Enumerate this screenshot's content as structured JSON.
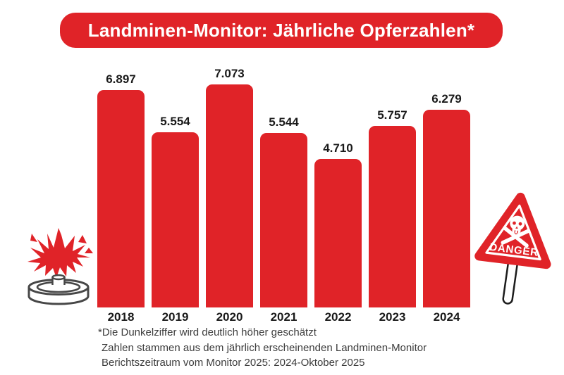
{
  "title": {
    "text": "Landminen-Monitor: Jährliche Opferzahlen*",
    "bg_color": "#e02328",
    "text_color": "#ffffff"
  },
  "chart_data": {
    "type": "bar",
    "title": "Landminen-Monitor: Jährliche Opferzahlen*",
    "categories": [
      "2018",
      "2019",
      "2020",
      "2021",
      "2022",
      "2023",
      "2024"
    ],
    "values": [
      6897,
      5554,
      7073,
      5544,
      4710,
      5757,
      6279
    ],
    "value_labels": [
      "6.897",
      "5.554",
      "7.073",
      "5.544",
      "4.710",
      "5.757",
      "6.279"
    ],
    "xlabel": "",
    "ylabel": "",
    "ylim": [
      0,
      7073
    ],
    "grid": false,
    "legend": false,
    "bar_color": "#e02328",
    "label_color": "#1a1a1a"
  },
  "footnotes": {
    "lines": [
      "*Die Dunkelziffer wird deutlich höher geschätzt",
      "Zahlen stammen aus dem jährlich erscheinenden Landminen-Monitor",
      "Berichtszeitraum vom Monitor 2025: 2024-Oktober 2025"
    ]
  },
  "decorations": {
    "landmine_icon": "landmine-explosion-icon",
    "danger_sign": {
      "label": "DANGER",
      "icon": "skull-crossbones-icon",
      "color": "#e02328"
    }
  }
}
